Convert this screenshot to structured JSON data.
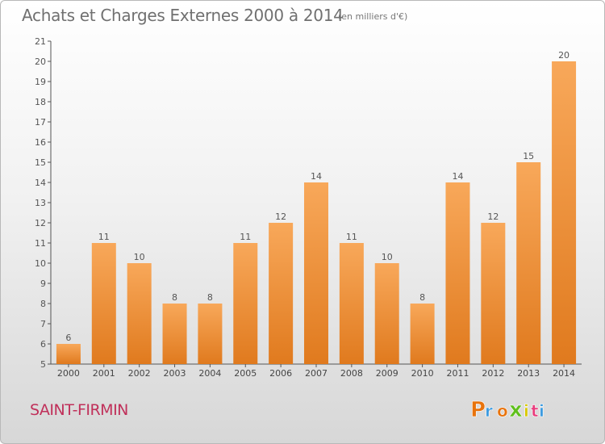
{
  "header": {
    "title": "Achats et Charges Externes 2000 à 2014",
    "unit": "(en milliers d'€)"
  },
  "footer": {
    "commune": "SAINT-FIRMIN",
    "logo_text": "Proxiti",
    "logo_colors": [
      "#e8730c",
      "#3d9be0",
      "#e8730c",
      "#5fbf1c",
      "#d8c800",
      "#e83c7c",
      "#3d9be0"
    ]
  },
  "colors": {
    "bar_light": "#f8a85a",
    "bar_dark": "#e07a1e",
    "axis": "#555555",
    "grid": "#bbbbbb"
  },
  "chart_data": {
    "type": "bar",
    "categories": [
      "2000",
      "2001",
      "2002",
      "2003",
      "2004",
      "2005",
      "2006",
      "2007",
      "2008",
      "2009",
      "2010",
      "2011",
      "2012",
      "2013",
      "2014"
    ],
    "values": [
      6,
      11,
      10,
      8,
      8,
      11,
      12,
      14,
      11,
      10,
      8,
      14,
      12,
      15,
      20
    ],
    "ylim": [
      5,
      21
    ],
    "yticks": [
      5,
      6,
      7,
      8,
      9,
      10,
      11,
      12,
      13,
      14,
      15,
      16,
      17,
      18,
      19,
      20,
      21
    ],
    "grid": false,
    "data_labels": true
  }
}
